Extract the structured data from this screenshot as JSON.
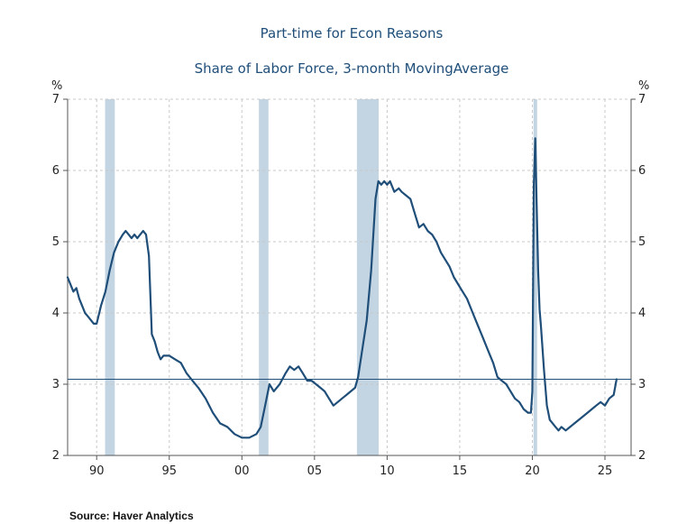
{
  "chart_data": {
    "type": "line",
    "title": "Part-time for Econ Reasons",
    "subtitle": "Share of Labor Force, 3-month MovingAverage",
    "y_unit_left": "%",
    "y_unit_right": "%",
    "ylim": [
      2,
      7
    ],
    "y_ticks": [
      2,
      3,
      4,
      5,
      6,
      7
    ],
    "xlim": [
      1988.0,
      2026.8
    ],
    "x_ticks": [
      {
        "year": 1990,
        "label": "90"
      },
      {
        "year": 1995,
        "label": "95"
      },
      {
        "year": 2000,
        "label": "00"
      },
      {
        "year": 2005,
        "label": "05"
      },
      {
        "year": 2010,
        "label": "10"
      },
      {
        "year": 2015,
        "label": "15"
      },
      {
        "year": 2020,
        "label": "20"
      },
      {
        "year": 2025,
        "label": "25"
      }
    ],
    "grid": true,
    "recessions": [
      [
        1990.58,
        1991.25
      ],
      [
        2001.17,
        2001.83
      ],
      [
        2007.92,
        2009.42
      ],
      [
        2020.08,
        2020.33
      ]
    ],
    "reference_line": 3.07,
    "colors": {
      "line": "#1f4e79",
      "recession": "#c3d5e2",
      "grid": "#c8c8c8",
      "reference": "#1f4e79",
      "title": "#1f4e79"
    },
    "series": [
      {
        "x": [
          1988.0,
          1988.2,
          1988.4,
          1988.6,
          1988.8,
          1989.0,
          1989.2,
          1989.4,
          1989.6,
          1989.8,
          1990.0,
          1990.3,
          1990.6,
          1990.9,
          1991.2,
          1991.5,
          1991.8,
          1992.0,
          1992.2,
          1992.4,
          1992.6,
          1992.8,
          1993.0,
          1993.2,
          1993.4,
          1993.6,
          1993.8,
          1994.0,
          1994.2,
          1994.4,
          1994.6,
          1995.0,
          1995.4,
          1995.8,
          1996.2,
          1996.6,
          1997.0,
          1997.5,
          1998.0,
          1998.5,
          1999.0,
          1999.5,
          2000.0,
          2000.5,
          2001.0,
          2001.3,
          2001.6,
          2001.9,
          2002.2,
          2002.6,
          2003.0,
          2003.3,
          2003.6,
          2003.9,
          2004.2,
          2004.5,
          2004.8,
          2005.1,
          2005.4,
          2005.7,
          2006.0,
          2006.3,
          2006.6,
          2006.9,
          2007.2,
          2007.5,
          2007.8,
          2008.0,
          2008.3,
          2008.6,
          2008.9,
          2009.2,
          2009.4,
          2009.6,
          2009.8,
          2010.0,
          2010.2,
          2010.5,
          2010.8,
          2011.0,
          2011.3,
          2011.6,
          2011.9,
          2012.2,
          2012.5,
          2012.8,
          2013.1,
          2013.4,
          2013.7,
          2014.0,
          2014.3,
          2014.6,
          2014.9,
          2015.2,
          2015.5,
          2015.8,
          2016.1,
          2016.4,
          2016.7,
          2017.0,
          2017.3,
          2017.6,
          2017.9,
          2018.2,
          2018.5,
          2018.8,
          2019.1,
          2019.4,
          2019.7,
          2019.9,
          2020.0,
          2020.1,
          2020.2,
          2020.3,
          2020.4,
          2020.5,
          2020.6,
          2020.8,
          2021.0,
          2021.2,
          2021.4,
          2021.6,
          2021.8,
          2022.0,
          2022.3,
          2022.6,
          2022.9,
          2023.2,
          2023.5,
          2023.8,
          2024.1,
          2024.4,
          2024.7,
          2025.0,
          2025.3,
          2025.6,
          2025.8
        ],
        "values": [
          4.5,
          4.4,
          4.3,
          4.35,
          4.2,
          4.1,
          4.0,
          3.95,
          3.9,
          3.85,
          3.85,
          4.1,
          4.3,
          4.6,
          4.85,
          5.0,
          5.1,
          5.15,
          5.1,
          5.05,
          5.1,
          5.05,
          5.1,
          5.15,
          5.1,
          4.8,
          3.7,
          3.6,
          3.45,
          3.35,
          3.4,
          3.4,
          3.35,
          3.3,
          3.15,
          3.05,
          2.95,
          2.8,
          2.6,
          2.45,
          2.4,
          2.3,
          2.25,
          2.25,
          2.3,
          2.4,
          2.7,
          3.0,
          2.9,
          3.0,
          3.15,
          3.25,
          3.2,
          3.25,
          3.15,
          3.05,
          3.05,
          3.0,
          2.95,
          2.9,
          2.8,
          2.7,
          2.75,
          2.8,
          2.85,
          2.9,
          2.95,
          3.1,
          3.5,
          3.9,
          4.6,
          5.6,
          5.85,
          5.8,
          5.85,
          5.8,
          5.85,
          5.7,
          5.75,
          5.7,
          5.65,
          5.6,
          5.4,
          5.2,
          5.25,
          5.15,
          5.1,
          5.0,
          4.85,
          4.75,
          4.65,
          4.5,
          4.4,
          4.3,
          4.2,
          4.05,
          3.9,
          3.75,
          3.6,
          3.45,
          3.3,
          3.1,
          3.05,
          3.0,
          2.9,
          2.8,
          2.75,
          2.65,
          2.6,
          2.6,
          2.9,
          5.8,
          6.45,
          5.5,
          4.6,
          4.05,
          3.8,
          3.2,
          2.7,
          2.5,
          2.45,
          2.4,
          2.35,
          2.4,
          2.35,
          2.4,
          2.45,
          2.5,
          2.55,
          2.6,
          2.65,
          2.7,
          2.75,
          2.7,
          2.8,
          2.85,
          3.07
        ]
      }
    ]
  },
  "footer": {
    "source": "Source:  Haver Analytics"
  }
}
